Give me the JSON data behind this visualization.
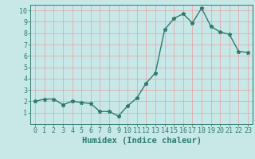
{
  "x": [
    0,
    1,
    2,
    3,
    4,
    5,
    6,
    7,
    8,
    9,
    10,
    11,
    12,
    13,
    14,
    15,
    16,
    17,
    18,
    19,
    20,
    21,
    22,
    23
  ],
  "y": [
    2.0,
    2.2,
    2.2,
    1.7,
    2.0,
    1.9,
    1.8,
    1.1,
    1.1,
    0.7,
    1.6,
    2.3,
    3.6,
    4.5,
    8.3,
    9.3,
    9.7,
    8.9,
    10.2,
    8.6,
    8.1,
    7.9,
    6.4,
    6.3
  ],
  "line_color": "#2d7b6f",
  "marker": "*",
  "marker_size": 3.5,
  "bg_color": "#c8e8e8",
  "grid_color": "#e8a0a0",
  "xlabel": "Humidex (Indice chaleur)",
  "xlabel_fontsize": 7.5,
  "xlim": [
    -0.5,
    23.5
  ],
  "ylim": [
    0,
    10.5
  ],
  "yticks": [
    1,
    2,
    3,
    4,
    5,
    6,
    7,
    8,
    9,
    10
  ],
  "xticks": [
    0,
    1,
    2,
    3,
    4,
    5,
    6,
    7,
    8,
    9,
    10,
    11,
    12,
    13,
    14,
    15,
    16,
    17,
    18,
    19,
    20,
    21,
    22,
    23
  ],
  "tick_fontsize": 6,
  "line_width": 1.0
}
